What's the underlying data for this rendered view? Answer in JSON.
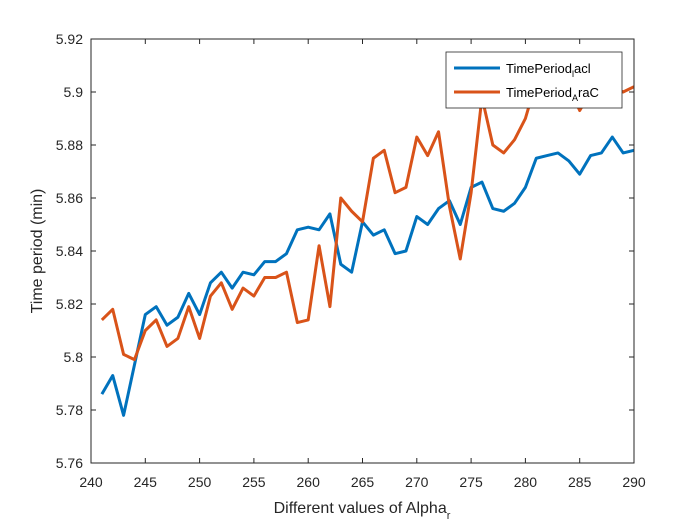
{
  "chart_data": {
    "type": "line",
    "title": "",
    "xlabel": "Different values of Alpha",
    "xlabel_subscript": "r",
    "ylabel": "Time period (min)",
    "xlim": [
      240,
      290
    ],
    "ylim": [
      5.76,
      5.92
    ],
    "xticks": [
      "240",
      "245",
      "250",
      "255",
      "260",
      "265",
      "270",
      "275",
      "280",
      "285",
      "290"
    ],
    "yticks": [
      "5.76",
      "5.78",
      "5.8",
      "5.82",
      "5.84",
      "5.86",
      "5.88",
      "5.9",
      "5.92"
    ],
    "grid": false,
    "legend_position": "top-right",
    "x": [
      241,
      242,
      243,
      244,
      245,
      246,
      247,
      248,
      249,
      250,
      251,
      252,
      253,
      254,
      255,
      256,
      257,
      258,
      259,
      260,
      261,
      262,
      263,
      264,
      265,
      266,
      267,
      268,
      269,
      270,
      271,
      272,
      273,
      274,
      275,
      276,
      277,
      278,
      279,
      280,
      281,
      282,
      283,
      284,
      285,
      286,
      287,
      288,
      289,
      290
    ],
    "series": [
      {
        "name": "TimePeriod",
        "name_subscript": "l",
        "name_suffix": "acl",
        "color": "#0072BD",
        "values": [
          5.786,
          5.793,
          5.778,
          5.797,
          5.816,
          5.819,
          5.812,
          5.815,
          5.824,
          5.816,
          5.828,
          5.832,
          5.826,
          5.832,
          5.831,
          5.836,
          5.836,
          5.839,
          5.848,
          5.849,
          5.848,
          5.854,
          5.835,
          5.832,
          5.851,
          5.846,
          5.848,
          5.839,
          5.84,
          5.853,
          5.85,
          5.856,
          5.859,
          5.85,
          5.864,
          5.866,
          5.856,
          5.855,
          5.858,
          5.864,
          5.875,
          5.876,
          5.877,
          5.874,
          5.869,
          5.876,
          5.877,
          5.883,
          5.877,
          5.878
        ]
      },
      {
        "name": "TimePeriod",
        "name_subscript": "A",
        "name_suffix": "raC",
        "color": "#D95319",
        "values": [
          5.814,
          5.818,
          5.801,
          5.799,
          5.81,
          5.814,
          5.804,
          5.807,
          5.819,
          5.807,
          5.823,
          5.828,
          5.818,
          5.826,
          5.823,
          5.83,
          5.83,
          5.832,
          5.813,
          5.814,
          5.842,
          5.819,
          5.86,
          5.855,
          5.851,
          5.875,
          5.878,
          5.862,
          5.864,
          5.883,
          5.876,
          5.885,
          5.857,
          5.837,
          5.862,
          5.898,
          5.88,
          5.877,
          5.882,
          5.89,
          5.904,
          5.91,
          5.906,
          5.902,
          5.893,
          5.9,
          5.905,
          5.902,
          5.9,
          5.902
        ]
      }
    ]
  }
}
